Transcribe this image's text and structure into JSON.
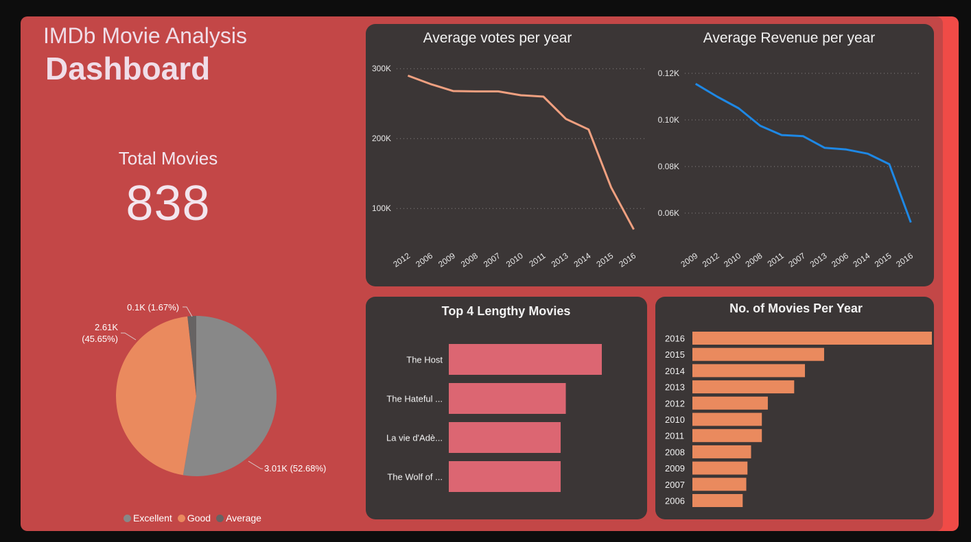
{
  "header": {
    "title": "IMDb Movie Analysis",
    "subtitle": "Dashboard"
  },
  "kpi": {
    "label": "Total Movies",
    "value": "838"
  },
  "colors": {
    "background": "#0d0d0d",
    "panel": "#c34747",
    "card": "#3b3636",
    "votes_line": "#f0a080",
    "revenue_line": "#1e88e5",
    "bar_lengthy": "#dc6672",
    "bar_year": "#ea8a5e"
  },
  "chart_data": [
    {
      "type": "pie",
      "title": "",
      "slices": [
        {
          "name": "Excellent",
          "value": 3.01,
          "label": "3.01K (52.68%)",
          "color": "#888888"
        },
        {
          "name": "Good",
          "value": 2.61,
          "label": "2.61K (45.65%)",
          "color": "#ea8a5e"
        },
        {
          "name": "Average",
          "value": 0.1,
          "label": "0.1K (1.67%)",
          "color": "#666363"
        }
      ],
      "legend": [
        "Excellent",
        "Good",
        "Average"
      ]
    },
    {
      "type": "line",
      "title": "Average votes per year",
      "categories": [
        "2012",
        "2006",
        "2009",
        "2008",
        "2007",
        "2010",
        "2011",
        "2013",
        "2014",
        "2015",
        "2016"
      ],
      "values": [
        290000,
        278000,
        268000,
        267500,
        267500,
        262000,
        260000,
        228000,
        213000,
        130000,
        70000
      ],
      "yticks": [
        "100K",
        "200K",
        "300K"
      ],
      "ylim": [
        60000,
        310000
      ]
    },
    {
      "type": "line",
      "title": "Average Revenue per year",
      "categories": [
        "2009",
        "2012",
        "2010",
        "2008",
        "2011",
        "2007",
        "2013",
        "2006",
        "2014",
        "2015",
        "2016"
      ],
      "values": [
        0.1155,
        0.11,
        0.105,
        0.0975,
        0.0935,
        0.093,
        0.088,
        0.0873,
        0.0855,
        0.081,
        0.056
      ],
      "yticks": [
        "0.06K",
        "0.08K",
        "0.10K",
        "0.12K"
      ],
      "ylim": [
        0.05,
        0.125
      ]
    },
    {
      "type": "bar",
      "title": "Top 4 Lengthy Movies",
      "categories": [
        "The Host",
        "The Hateful ...",
        "La vie d'Adè...",
        "The Wolf of ..."
      ],
      "values": [
        119,
        91,
        87,
        87
      ],
      "xlim": [
        0,
        119
      ]
    },
    {
      "type": "bar",
      "title": "No. of Movies Per Year",
      "categories": [
        "2016",
        "2015",
        "2014",
        "2013",
        "2012",
        "2010",
        "2011",
        "2008",
        "2009",
        "2007",
        "2006"
      ],
      "values": [
        100,
        55,
        47,
        42.5,
        31.5,
        29,
        29,
        24.5,
        23,
        22.5,
        21
      ],
      "xlim": [
        0,
        100
      ]
    }
  ]
}
